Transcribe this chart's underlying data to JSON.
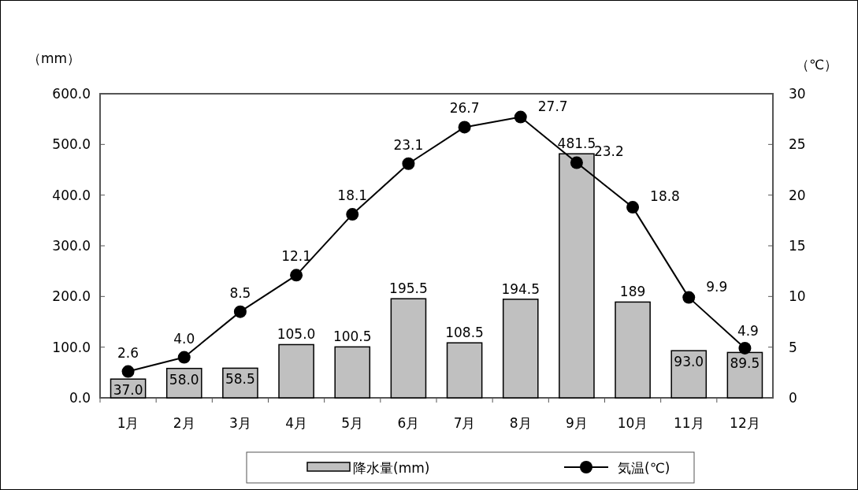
{
  "chart_data": {
    "type": "bar",
    "ylabel": "（mm）",
    "y2label": "（℃）",
    "categories": [
      "1月",
      "2月",
      "3月",
      "4月",
      "5月",
      "6月",
      "7月",
      "8月",
      "9月",
      "10月",
      "11月",
      "12月"
    ],
    "series": [
      {
        "name": "降水量(mm)",
        "color": "#c0c0c0",
        "values": [
          37.0,
          58.0,
          58.5,
          105.0,
          100.5,
          195.5,
          108.5,
          194.5,
          481.5,
          189,
          93.0,
          89.5
        ],
        "value_labels": [
          "37.0",
          "58.0",
          "58.5",
          "105.0",
          "100.5",
          "195.5",
          "108.5",
          "194.5",
          "481.5",
          "189",
          "93.0",
          "89.5"
        ]
      },
      {
        "name": "気温(℃)",
        "type": "line",
        "axis": "y2",
        "color": "#000000",
        "marker": "circle",
        "values": [
          2.6,
          4.0,
          8.5,
          12.1,
          18.1,
          23.1,
          26.7,
          27.7,
          23.2,
          18.8,
          9.9,
          4.9
        ],
        "value_labels": [
          "2.6",
          "4.0",
          "8.5",
          "12.1",
          "18.1",
          "23.1",
          "26.7",
          "27.7",
          "23.2",
          "18.8",
          "9.9",
          "4.9"
        ]
      }
    ],
    "ylim": [
      0,
      600
    ],
    "yticks": [
      {
        "value": 0,
        "label": "0.0"
      },
      {
        "value": 100,
        "label": "100.0"
      },
      {
        "value": 200,
        "label": "200.0"
      },
      {
        "value": 300,
        "label": "300.0"
      },
      {
        "value": 400,
        "label": "400.0"
      },
      {
        "value": 500,
        "label": "500.0"
      },
      {
        "value": 600,
        "label": "600.0"
      }
    ],
    "y2lim": [
      0,
      30
    ],
    "y2ticks": [
      0,
      5,
      10,
      15,
      20,
      25,
      30
    ],
    "grid": false,
    "legend": "bottom"
  }
}
